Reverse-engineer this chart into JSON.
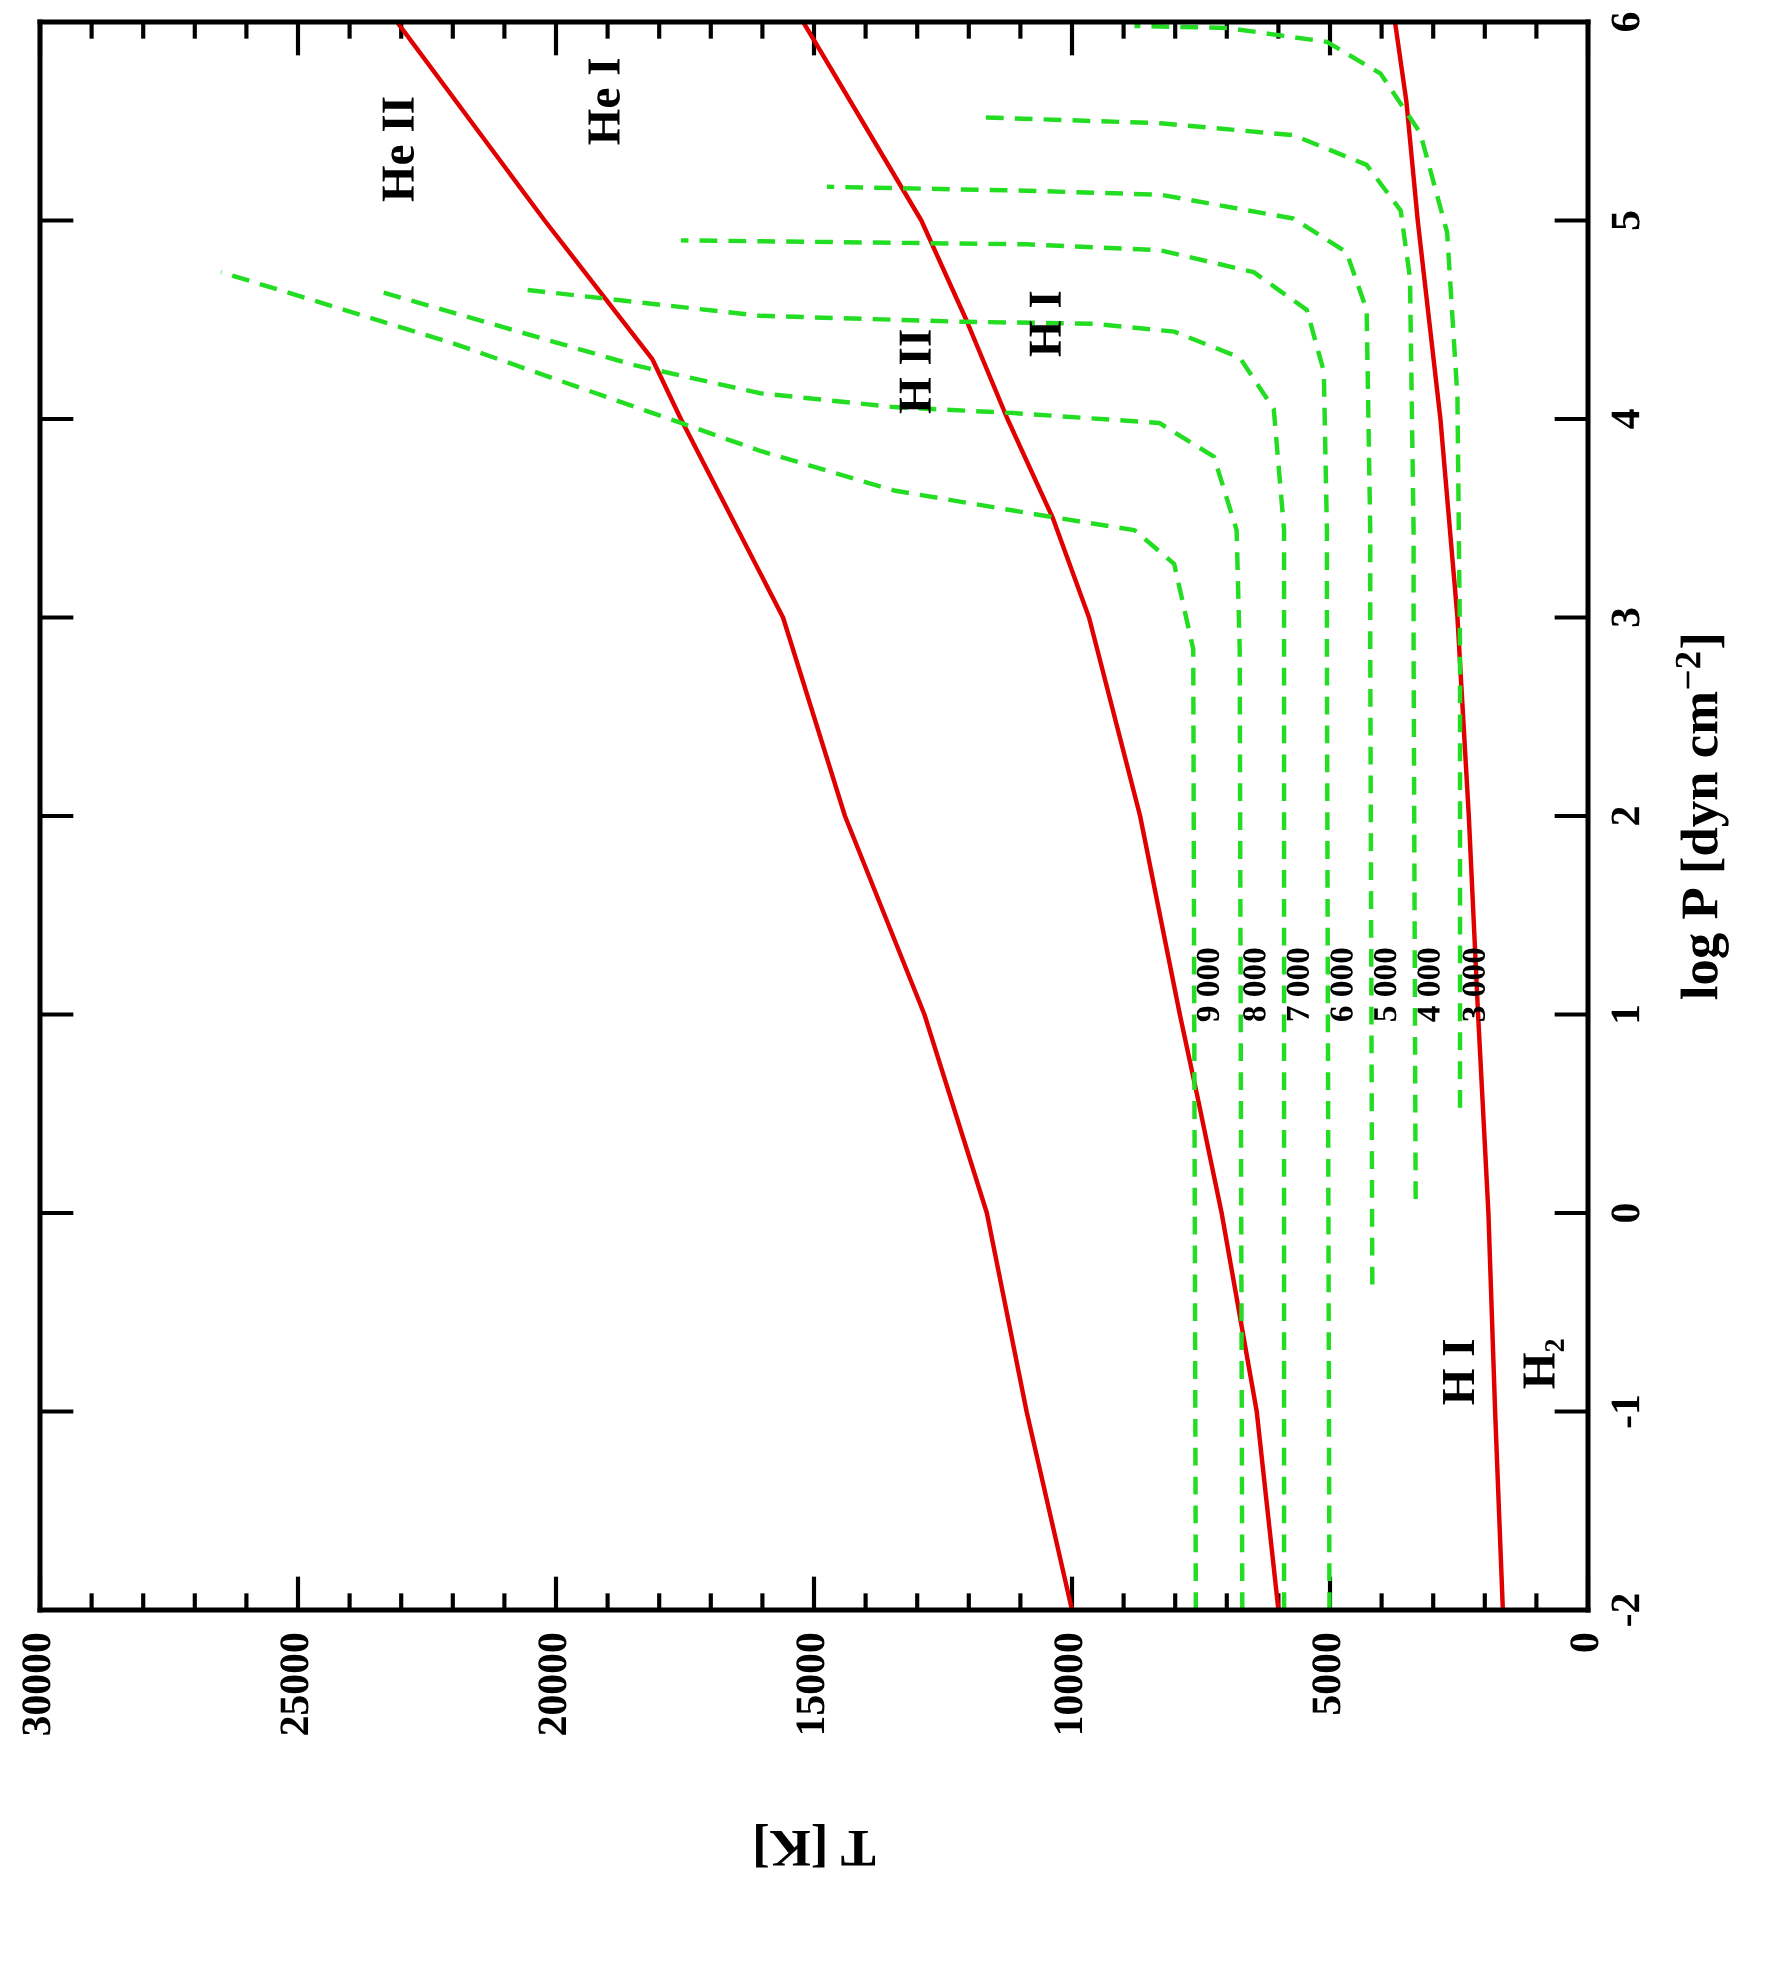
{
  "chart_data": {
    "type": "line",
    "xlabel": "T [K]",
    "ylabel": "log P [dyn cm$^{−2}$]",
    "ylim": [
      -2,
      6
    ],
    "yticks": [
      -2,
      -1,
      0,
      1,
      2,
      3,
      4,
      5,
      6
    ],
    "xlim": [
      30000,
      0
    ],
    "xticks": [
      0,
      {
        "value": 1000,
        "label": null
      },
      {
        "value": 2000,
        "label": null
      },
      {
        "value": 3000,
        "label": null
      },
      {
        "value": 4000,
        "label": null
      },
      5000,
      {
        "value": 6000,
        "label": null
      },
      {
        "value": 7000,
        "label": null
      },
      {
        "value": 8000,
        "label": null
      },
      {
        "value": 9000,
        "label": null
      },
      10000,
      {
        "value": 11000,
        "label": null
      },
      {
        "value": 12000,
        "label": null
      },
      {
        "value": 13000,
        "label": null
      },
      {
        "value": 14000,
        "label": null
      },
      15000,
      {
        "value": 16000,
        "label": null
      },
      {
        "value": 17000,
        "label": null
      },
      {
        "value": 18000,
        "label": null
      },
      {
        "value": 19000,
        "label": null
      },
      20000,
      {
        "value": 21000,
        "label": null
      },
      {
        "value": 22000,
        "label": null
      },
      {
        "value": 23000,
        "label": null
      },
      {
        "value": 24000,
        "label": null
      },
      25000,
      {
        "value": 26000,
        "label": null
      },
      {
        "value": 27000,
        "label": null
      },
      {
        "value": 28000,
        "label": null
      },
      {
        "value": 29000,
        "label": null
      },
      30000
    ],
    "grid": false,
    "legend": false,
    "series": [
      {
        "color": "#e00000",
        "line_style": "solid",
        "values": [
          -2,
          -1,
          0,
          1,
          2,
          3,
          4,
          5,
          5.6,
          6
        ],
        "x": [
          1650,
          1800,
          1930,
          2130,
          2310,
          2530,
          2860,
          3300,
          3520,
          3740
        ]
      },
      {
        "color": "#e00000",
        "line_style": "solid",
        "values": [
          -2,
          -1,
          0,
          0.6,
          1,
          2,
          3,
          3.5,
          4,
          4.5,
          5,
          6
        ],
        "x": [
          6000,
          6420,
          7100,
          7580,
          7910,
          8680,
          9670,
          10370,
          11250,
          12050,
          12920,
          15210
        ]
      },
      {
        "color": "#e00000",
        "line_style": "solid",
        "values": [
          -2,
          -1,
          0,
          1,
          2,
          3,
          4,
          4.3,
          5,
          6
        ],
        "x": [
          10000,
          10880,
          11650,
          12860,
          14400,
          15600,
          17580,
          18130,
          20220,
          23080
        ]
      },
      {
        "name": "9 000",
        "color": "#22dd22",
        "line_style": "dashed",
        "values": [
          -2,
          2.84,
          3.27,
          3.44,
          3.51,
          3.64,
          3.84,
          3.98,
          4.38,
          4.74
        ],
        "x": [
          7600,
          7650,
          8020,
          8790,
          10480,
          13450,
          16050,
          17580,
          21980,
          26490
        ]
      },
      {
        "name": "8 000",
        "color": "#22dd22",
        "line_style": "dashed",
        "values": [
          -2,
          2.84,
          3.44,
          3.81,
          3.98,
          4.03,
          4.06,
          4.13,
          4.27,
          4.65
        ],
        "x": [
          6700,
          6750,
          6810,
          7250,
          8310,
          11140,
          13450,
          16050,
          18460,
          23520
        ]
      },
      {
        "name": "7 000",
        "color": "#22dd22",
        "line_style": "dashed",
        "values": [
          -2,
          2.84,
          3.44,
          4.05,
          4.31,
          4.44,
          4.48,
          4.49,
          4.52,
          4.65
        ],
        "x": [
          5890,
          5890,
          5890,
          6090,
          6750,
          8020,
          9580,
          12150,
          16050,
          20550
        ]
      },
      {
        "name": "6 000",
        "color": "#22dd22",
        "line_style": "dashed",
        "values": [
          -2,
          2.84,
          3.44,
          4.24,
          4.55,
          4.74,
          4.85,
          4.88,
          4.9
        ],
        "x": [
          5010,
          5060,
          5060,
          5120,
          5450,
          6480,
          8290,
          10880,
          17580
        ]
      },
      {
        "name": "5 000",
        "color": "#22dd22",
        "line_style": "dashed",
        "values": [
          -0.36,
          2.84,
          3.44,
          4.55,
          4.84,
          5.01,
          5.13,
          5.15,
          5.17
        ],
        "x": [
          4180,
          4220,
          4220,
          4290,
          4680,
          5710,
          8290,
          10880,
          14750
        ]
      },
      {
        "name": "4 000",
        "color": "#22dd22",
        "line_style": "dashed",
        "values": [
          0.07,
          2.84,
          3.44,
          4.71,
          5.05,
          5.28,
          5.43,
          5.49,
          5.52
        ],
        "x": [
          3340,
          3380,
          3380,
          3450,
          3630,
          4290,
          5710,
          8290,
          11780
        ]
      },
      {
        "name": "3 000",
        "color": "#22dd22",
        "line_style": "dashed",
        "values": [
          0.53,
          2.84,
          4.11,
          4.94,
          5.44,
          5.74,
          5.9,
          5.97,
          5.98
        ],
        "x": [
          2480,
          2480,
          2530,
          2730,
          3250,
          4020,
          5060,
          6990,
          8790
        ]
      }
    ],
    "annotations": [
      "He II",
      "He I",
      "H II",
      "H I",
      "H I",
      "H₂"
    ]
  }
}
